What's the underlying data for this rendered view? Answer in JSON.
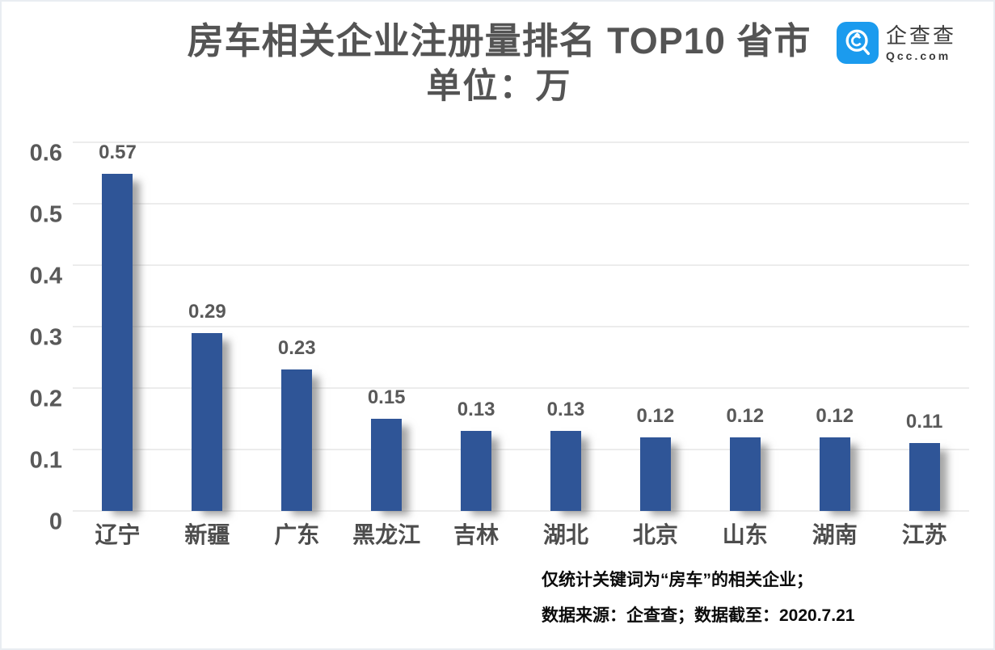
{
  "header": {
    "title": "房车相关企业注册量排名 TOP10 省市",
    "subtitle": "单位：万"
  },
  "logo": {
    "name": "企查查",
    "domain": "Qcc.com",
    "brand_color": "#1b9bee"
  },
  "chart_data": {
    "type": "bar",
    "title": "房车相关企业注册量排名 TOP10 省市",
    "subtitle": "单位：万",
    "categories": [
      "辽宁",
      "新疆",
      "广东",
      "黑龙江",
      "吉林",
      "湖北",
      "北京",
      "山东",
      "湖南",
      "江苏"
    ],
    "values": [
      0.57,
      0.29,
      0.23,
      0.15,
      0.13,
      0.13,
      0.12,
      0.12,
      0.12,
      0.11
    ],
    "value_labels": [
      "0.57",
      "0.29",
      "0.23",
      "0.15",
      "0.13",
      "0.13",
      "0.12",
      "0.12",
      "0.12",
      "0.11"
    ],
    "ylim": [
      0,
      0.6
    ],
    "yticks": [
      0,
      0.1,
      0.2,
      0.3,
      0.4,
      0.5,
      0.6
    ],
    "ytick_labels": [
      "0",
      "0.1",
      "0.2",
      "0.3",
      "0.4",
      "0.5",
      "0.6"
    ],
    "grid": true,
    "legend_position": "none",
    "bar_color": "#2f5597",
    "gridline_color": "#d9d9d9",
    "axis_label_color": "#595959"
  },
  "footnotes": [
    "仅统计关键词为“房车”的相关企业；",
    "数据来源：企查查；数据截至：2020.7.21"
  ]
}
